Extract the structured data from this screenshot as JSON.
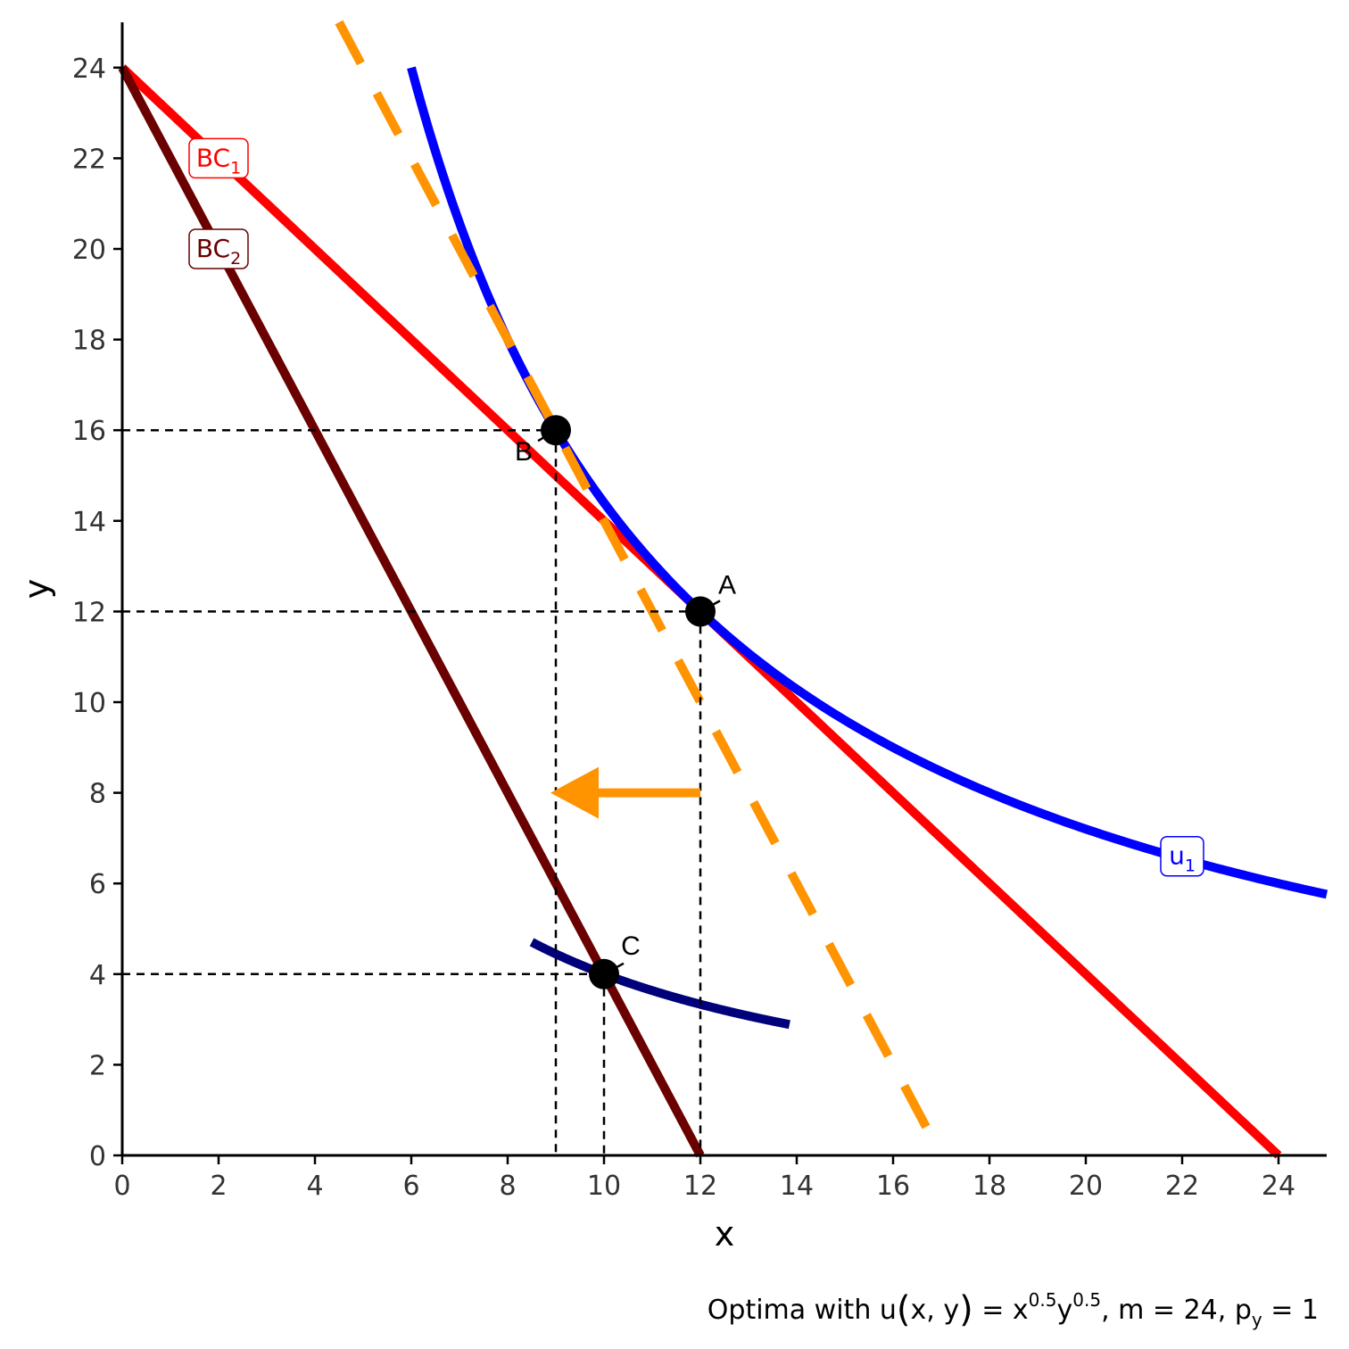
{
  "chart_data": {
    "type": "line",
    "xlabel": "x",
    "ylabel": "y",
    "xlim": [
      0,
      25
    ],
    "ylim": [
      0,
      25
    ],
    "x_ticks": [
      0,
      2,
      4,
      6,
      8,
      10,
      12,
      14,
      16,
      18,
      20,
      22,
      24
    ],
    "y_ticks": [
      0,
      2,
      4,
      6,
      8,
      10,
      12,
      14,
      16,
      18,
      20,
      22,
      24
    ],
    "grid": false,
    "caption": {
      "main": "Optima with u",
      "paren_open": "(",
      "args": "x, y",
      "paren_close": ")",
      "eq": " = x",
      "exp1": "0.5",
      "y_var": "y",
      "exp2": "0.5",
      "rest": ", m = 24, p",
      "sub": "y",
      "tail": " = 1"
    },
    "series": [
      {
        "name": "BC",
        "sub": "1",
        "kind": "budget",
        "x": [
          0,
          24
        ],
        "y": [
          24,
          0
        ],
        "color": "#ff0000",
        "dashed": false,
        "label_at": [
          2,
          22
        ]
      },
      {
        "name": "BC",
        "sub": "2",
        "kind": "budget",
        "x": [
          0,
          12
        ],
        "y": [
          24,
          0
        ],
        "color": "#6b0000",
        "dashed": false,
        "label_at": [
          2,
          20
        ]
      },
      {
        "name": "u",
        "sub": "1",
        "kind": "indifference",
        "k": 144,
        "x_range": [
          6,
          25
        ],
        "color": "#0000ff",
        "dashed": false,
        "label_at": [
          22,
          6.6
        ]
      },
      {
        "name": "",
        "sub": "",
        "kind": "indifference",
        "k": 40,
        "x_range": [
          8.5,
          13.85
        ],
        "color": "#00007a",
        "dashed": false
      },
      {
        "name": "",
        "sub": "",
        "kind": "budget",
        "x": [
          4.5,
          17
        ],
        "y": [
          25,
          0
        ],
        "color": "#ff9300",
        "dashed": true
      }
    ],
    "points": [
      {
        "label": "A",
        "x": 12,
        "y": 12
      },
      {
        "label": "B",
        "x": 9,
        "y": 16
      },
      {
        "label": "C",
        "x": 10,
        "y": 4
      }
    ],
    "arrow": {
      "from": [
        12,
        8
      ],
      "to": [
        9,
        8
      ],
      "color": "#ff9300"
    }
  }
}
